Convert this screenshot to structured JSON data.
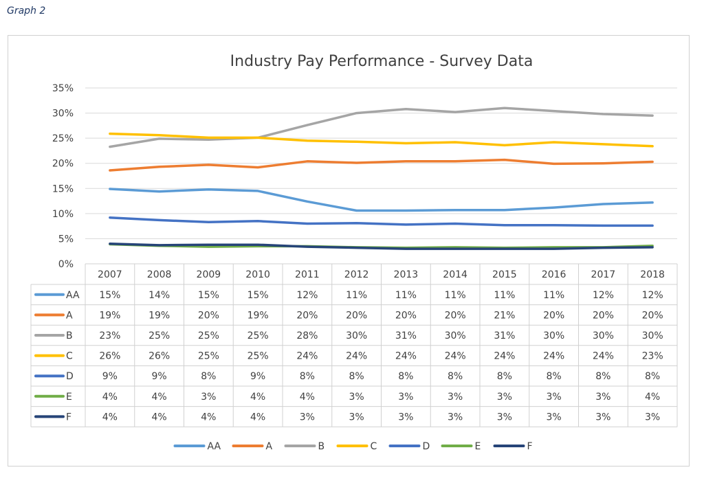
{
  "caption": "Graph 2",
  "chart_data": {
    "type": "line",
    "title": "Industry Pay Performance - Survey Data",
    "xlabel": "",
    "ylabel": "",
    "ylim": [
      0,
      0.35
    ],
    "y_ticks": [
      "0%",
      "5%",
      "10%",
      "15%",
      "20%",
      "25%",
      "30%",
      "35%"
    ],
    "grid": true,
    "legend_position": "bottom",
    "categories": [
      "2007",
      "2008",
      "2009",
      "2010",
      "2011",
      "2012",
      "2013",
      "2014",
      "2015",
      "2016",
      "2017",
      "2018"
    ],
    "series": [
      {
        "name": "AA",
        "color": "#5b9bd5",
        "values": [
          0.149,
          0.144,
          0.148,
          0.145,
          0.124,
          0.106,
          0.106,
          0.107,
          0.107,
          0.112,
          0.119,
          0.122
        ],
        "labels": [
          "15%",
          "14%",
          "15%",
          "15%",
          "12%",
          "11%",
          "11%",
          "11%",
          "11%",
          "11%",
          "12%",
          "12%"
        ]
      },
      {
        "name": "A",
        "color": "#ed7d31",
        "values": [
          0.186,
          0.193,
          0.197,
          0.192,
          0.204,
          0.201,
          0.204,
          0.204,
          0.207,
          0.199,
          0.2,
          0.203
        ],
        "labels": [
          "19%",
          "19%",
          "20%",
          "19%",
          "20%",
          "20%",
          "20%",
          "20%",
          "21%",
          "20%",
          "20%",
          "20%"
        ]
      },
      {
        "name": "B",
        "color": "#a5a5a5",
        "values": [
          0.233,
          0.249,
          0.247,
          0.251,
          0.276,
          0.3,
          0.308,
          0.302,
          0.31,
          0.304,
          0.298,
          0.295
        ],
        "labels": [
          "23%",
          "25%",
          "25%",
          "25%",
          "28%",
          "30%",
          "31%",
          "30%",
          "31%",
          "30%",
          "30%",
          "30%"
        ]
      },
      {
        "name": "C",
        "color": "#ffc000",
        "values": [
          0.259,
          0.256,
          0.251,
          0.251,
          0.245,
          0.243,
          0.24,
          0.242,
          0.236,
          0.242,
          0.238,
          0.234
        ],
        "labels": [
          "26%",
          "26%",
          "25%",
          "25%",
          "24%",
          "24%",
          "24%",
          "24%",
          "24%",
          "24%",
          "24%",
          "23%"
        ]
      },
      {
        "name": "D",
        "color": "#4472c4",
        "values": [
          0.092,
          0.087,
          0.083,
          0.085,
          0.08,
          0.081,
          0.078,
          0.08,
          0.077,
          0.077,
          0.076,
          0.076
        ],
        "labels": [
          "9%",
          "9%",
          "8%",
          "9%",
          "8%",
          "8%",
          "8%",
          "8%",
          "8%",
          "8%",
          "8%",
          "8%"
        ]
      },
      {
        "name": "E",
        "color": "#70ad47",
        "values": [
          0.039,
          0.036,
          0.034,
          0.035,
          0.035,
          0.033,
          0.032,
          0.033,
          0.032,
          0.033,
          0.033,
          0.036
        ],
        "labels": [
          "4%",
          "4%",
          "3%",
          "4%",
          "4%",
          "3%",
          "3%",
          "3%",
          "3%",
          "3%",
          "3%",
          "4%"
        ]
      },
      {
        "name": "F",
        "color": "#264478",
        "values": [
          0.04,
          0.037,
          0.038,
          0.038,
          0.034,
          0.032,
          0.03,
          0.03,
          0.03,
          0.03,
          0.032,
          0.033
        ],
        "labels": [
          "4%",
          "4%",
          "4%",
          "4%",
          "3%",
          "3%",
          "3%",
          "3%",
          "3%",
          "3%",
          "3%",
          "3%"
        ]
      }
    ]
  }
}
